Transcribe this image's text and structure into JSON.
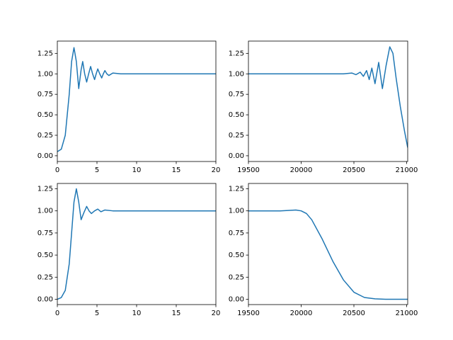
{
  "chart_data": [
    {
      "type": "line",
      "color": "#1f77b4",
      "x": [
        0,
        0.5,
        1,
        1.5,
        1.8,
        2.1,
        2.4,
        2.7,
        3.0,
        3.2,
        3.45,
        3.7,
        3.95,
        4.2,
        4.45,
        4.7,
        4.9,
        5.1,
        5.35,
        5.6,
        5.8,
        6.0,
        6.25,
        6.5,
        7,
        8,
        10,
        15,
        20
      ],
      "values": [
        0.05,
        0.08,
        0.25,
        0.75,
        1.15,
        1.32,
        1.15,
        0.82,
        1.05,
        1.15,
        1.0,
        0.9,
        1.0,
        1.09,
        1.0,
        0.93,
        1.0,
        1.06,
        1.0,
        0.95,
        1.0,
        1.04,
        1.0,
        0.98,
        1.01,
        1.0,
        1.0,
        1.0,
        1.0
      ],
      "xlim": [
        0,
        20
      ],
      "xticks": [
        0,
        5,
        10,
        15,
        20
      ],
      "ylim": [
        -0.07,
        1.4
      ],
      "yticks": [
        {
          "value": 0,
          "label": "0.00"
        },
        {
          "value": 0.25,
          "label": "0.25"
        },
        {
          "value": 0.5,
          "label": "0.50"
        },
        {
          "value": 0.75,
          "label": "0.75"
        },
        {
          "value": 1,
          "label": "1.00"
        },
        {
          "value": 1.25,
          "label": "1.25"
        }
      ]
    },
    {
      "type": "line",
      "color": "#1f77b4",
      "x": [
        19500,
        20000,
        20400,
        20480,
        20520,
        20560,
        20590,
        20620,
        20645,
        20670,
        20700,
        20735,
        20770,
        20805,
        20840,
        20870,
        20900,
        20940,
        20980,
        21010
      ],
      "values": [
        1,
        1,
        1,
        1.01,
        0.99,
        1.02,
        0.97,
        1.04,
        0.93,
        1.07,
        0.88,
        1.14,
        0.82,
        1.1,
        1.33,
        1.25,
        0.95,
        0.6,
        0.3,
        0.1
      ],
      "xlim": [
        19500,
        21010
      ],
      "xticks": [
        19500,
        20000,
        20500,
        21000
      ],
      "ylim": [
        -0.07,
        1.4
      ],
      "yticks": [
        {
          "value": 0,
          "label": "0.00"
        },
        {
          "value": 0.25,
          "label": "0.25"
        },
        {
          "value": 0.5,
          "label": "0.50"
        },
        {
          "value": 0.75,
          "label": "0.75"
        },
        {
          "value": 1,
          "label": "1.00"
        },
        {
          "value": 1.25,
          "label": "1.25"
        }
      ]
    },
    {
      "type": "line",
      "color": "#1f77b4",
      "x": [
        0,
        0.5,
        1,
        1.5,
        1.8,
        2.1,
        2.4,
        2.7,
        3.0,
        3.35,
        3.7,
        4.0,
        4.3,
        4.7,
        5.1,
        5.5,
        6,
        7,
        10,
        15,
        20
      ],
      "values": [
        0,
        0.02,
        0.1,
        0.4,
        0.75,
        1.1,
        1.25,
        1.1,
        0.9,
        0.98,
        1.05,
        1.0,
        0.97,
        1.0,
        1.02,
        0.99,
        1.01,
        1.0,
        1.0,
        1.0,
        1.0
      ],
      "xlim": [
        0,
        20
      ],
      "xticks": [
        0,
        5,
        10,
        15,
        20
      ],
      "ylim": [
        -0.06,
        1.31
      ],
      "yticks": [
        {
          "value": 0,
          "label": "0.00"
        },
        {
          "value": 0.25,
          "label": "0.25"
        },
        {
          "value": 0.5,
          "label": "0.50"
        },
        {
          "value": 0.75,
          "label": "0.75"
        },
        {
          "value": 1,
          "label": "1.00"
        },
        {
          "value": 1.25,
          "label": "1.25"
        }
      ]
    },
    {
      "type": "line",
      "color": "#1f77b4",
      "x": [
        19500,
        19800,
        19950,
        20000,
        20050,
        20100,
        20200,
        20300,
        20400,
        20500,
        20600,
        20700,
        20800,
        21010
      ],
      "values": [
        1,
        1,
        1.01,
        1.0,
        0.97,
        0.9,
        0.68,
        0.43,
        0.22,
        0.08,
        0.02,
        0.005,
        0,
        0
      ],
      "xlim": [
        19500,
        21010
      ],
      "xticks": [
        19500,
        20000,
        20500,
        21000
      ],
      "ylim": [
        -0.06,
        1.31
      ],
      "yticks": [
        {
          "value": 0,
          "label": "0.00"
        },
        {
          "value": 0.25,
          "label": "0.25"
        },
        {
          "value": 0.5,
          "label": "0.50"
        },
        {
          "value": 0.75,
          "label": "0.75"
        },
        {
          "value": 1,
          "label": "1.00"
        },
        {
          "value": 1.25,
          "label": "1.25"
        }
      ]
    }
  ]
}
